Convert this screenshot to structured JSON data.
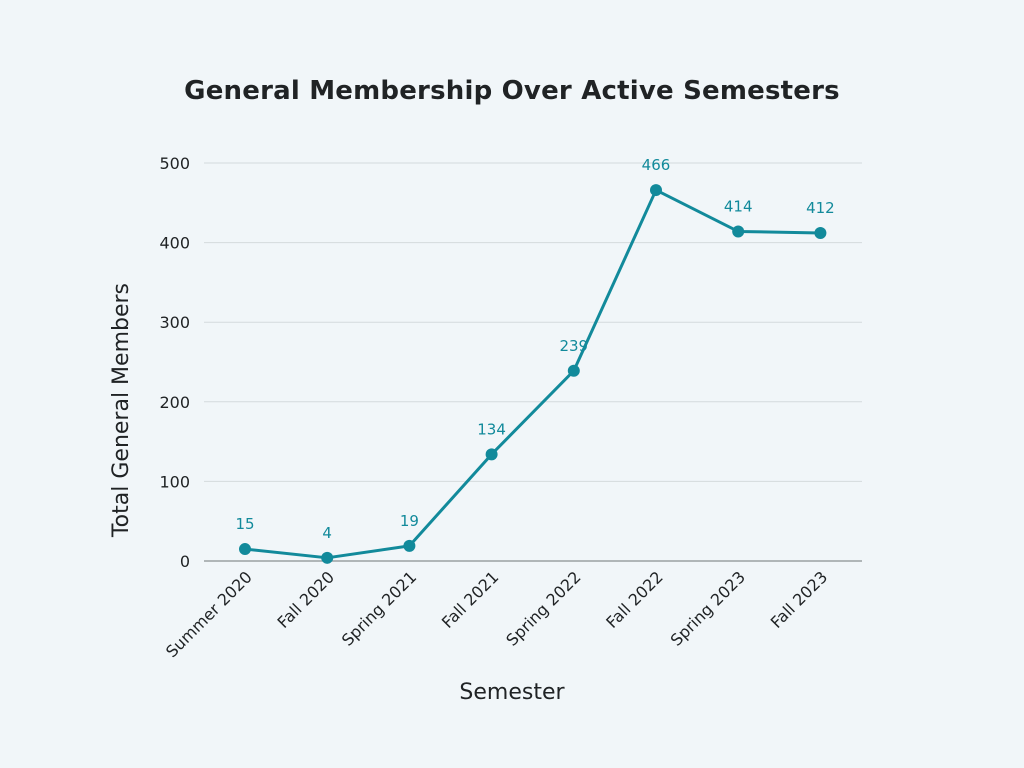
{
  "colors": {
    "background": "#f1f6f9",
    "series": "#128a9b",
    "gridline": "#d4dadd",
    "baseline": "#8a8f92",
    "text": "#202325"
  },
  "chart_data": {
    "type": "line",
    "title": "General Membership Over Active Semesters",
    "xlabel": "Semester",
    "ylabel": "Total General Members",
    "categories": [
      "Summer 2020",
      "Fall 2020",
      "Spring 2021",
      "Fall 2021",
      "Spring 2022",
      "Fall 2022",
      "Spring 2023",
      "Fall 2023"
    ],
    "series": [
      {
        "values": [
          15,
          4,
          19,
          134,
          239,
          466,
          414,
          412
        ]
      }
    ],
    "ylim": [
      0,
      500
    ],
    "yticks": [
      "0",
      "100",
      "200",
      "300",
      "400",
      "500"
    ],
    "data_labels": [
      "15",
      "4",
      "19",
      "134",
      "239",
      "466",
      "414",
      "412"
    ],
    "grid": true,
    "legend": "none"
  }
}
